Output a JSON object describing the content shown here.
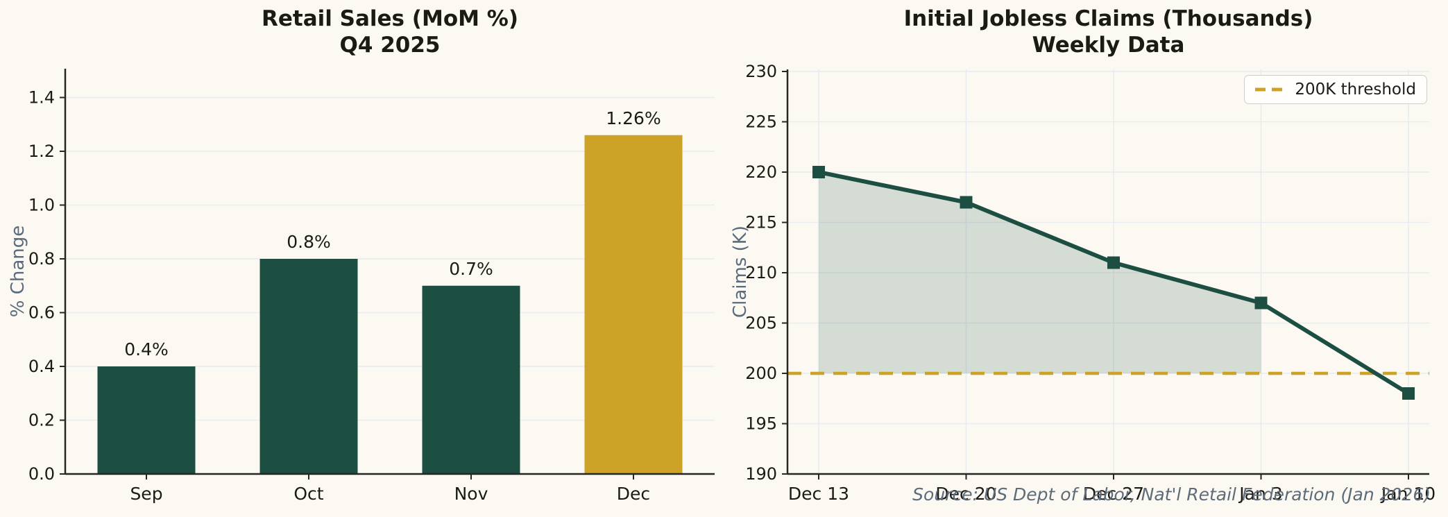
{
  "page": {
    "background": "#FBF9F2",
    "source_note": "Source: US Dept of Labor, Nat'l Retail Federation (Jan 2026)"
  },
  "colors": {
    "dark_green": "#1C4E41",
    "gold": "#CCA227",
    "grid": "#E8ECEF",
    "spine": "#262622",
    "tick_text": "#1B1B16",
    "axis_label": "#5A6B7E",
    "fill_under_line": "rgba(29,78,65,0.17)"
  },
  "chart_data": [
    {
      "type": "bar",
      "title": "Retail Sales (MoM %)",
      "subtitle": "Q4 2025",
      "categories": [
        "Sep",
        "Oct",
        "Nov",
        "Dec"
      ],
      "values": [
        0.4,
        0.8,
        0.7,
        1.26
      ],
      "value_labels": [
        "0.4%",
        "0.8%",
        "0.7%",
        "1.26%"
      ],
      "bar_colors": [
        "#1C4E41",
        "#1C4E41",
        "#1C4E41",
        "#CCA227"
      ],
      "xlabel": "",
      "ylabel": "% Change",
      "ylim": [
        0,
        1.5
      ],
      "yticks": [
        0.0,
        0.2,
        0.4,
        0.6,
        0.8,
        1.0,
        1.2,
        1.4
      ],
      "ytick_labels": [
        "0.0",
        "0.2",
        "0.4",
        "0.6",
        "0.8",
        "1.0",
        "1.2",
        "1.4"
      ],
      "grid": "horizontal",
      "legend_position": "none"
    },
    {
      "type": "line",
      "title": "Initial Jobless Claims (Thousands)",
      "subtitle": "Weekly Data",
      "x": [
        "Dec 13",
        "Dec 20",
        "Dec 27",
        "Jan 3",
        "Jan 10"
      ],
      "series": [
        {
          "name": "Initial jobless claims",
          "values": [
            220,
            217,
            211,
            207,
            198
          ],
          "color": "#1C4E41",
          "marker": "square",
          "line_width": 6
        }
      ],
      "threshold_line": {
        "label": "200K threshold",
        "value": 200,
        "color": "#CCA227",
        "style": "dashed"
      },
      "area_fill": {
        "between": "series-and-threshold",
        "from_x": "Dec 13",
        "to_x": "Jan 3",
        "color": "rgba(29,78,65,0.17)"
      },
      "xlabel": "",
      "ylabel": "Claims (K)",
      "ylim": [
        190,
        230
      ],
      "yticks": [
        190,
        195,
        200,
        205,
        210,
        215,
        220,
        225,
        230
      ],
      "ytick_labels": [
        "190",
        "195",
        "200",
        "205",
        "210",
        "215",
        "220",
        "225",
        "230"
      ],
      "grid": "both",
      "legend": {
        "position": "top-right",
        "label": "200K threshold"
      }
    }
  ]
}
